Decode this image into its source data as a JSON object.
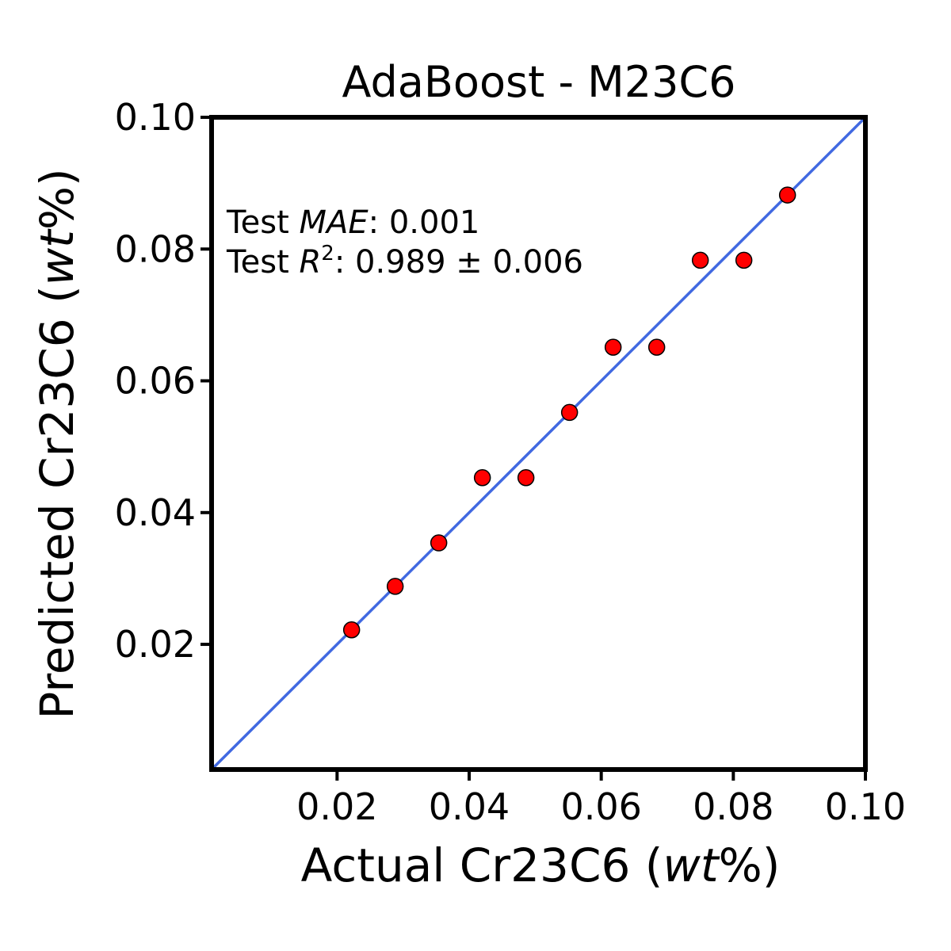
{
  "chart_data": {
    "type": "scatter",
    "title": "AdaBoost - M23C6",
    "xlabel": {
      "prefix": "Actual Cr23C6 (",
      "italic": "wt",
      "suffix": "%)"
    },
    "ylabel": {
      "prefix": "Predicted Cr23C6 (",
      "italic": "wt",
      "suffix": "%)"
    },
    "xlim": [
      0.001,
      0.1
    ],
    "ylim": [
      0.001,
      0.1
    ],
    "xticks": [
      0.02,
      0.04,
      0.06,
      0.08,
      0.1
    ],
    "yticks": [
      0.02,
      0.04,
      0.06,
      0.08,
      0.1
    ],
    "xtick_labels": [
      "0.02",
      "0.04",
      "0.06",
      "0.08",
      "0.10"
    ],
    "ytick_labels": [
      "0.02",
      "0.04",
      "0.06",
      "0.08",
      "0.10"
    ],
    "grid": false,
    "reference_line": {
      "type": "y=x",
      "color": "#4169e1"
    },
    "points": {
      "color": "#ff0000",
      "edge_color": "#000000",
      "x": [
        0.0222,
        0.0288,
        0.0354,
        0.042,
        0.0486,
        0.0552,
        0.0618,
        0.0684,
        0.075,
        0.0816,
        0.0882
      ],
      "y": [
        0.0222,
        0.0288,
        0.0354,
        0.0453,
        0.0453,
        0.0552,
        0.0651,
        0.0651,
        0.0783,
        0.0783,
        0.0882
      ]
    },
    "annotations": {
      "mae": {
        "prefix": "Test ",
        "italic": "MAE",
        "suffix": ": 0.001"
      },
      "r2": {
        "prefix": "Test ",
        "italic": "R",
        "sup": "2",
        "suffix": ": 0.989 ± 0.006"
      }
    }
  }
}
